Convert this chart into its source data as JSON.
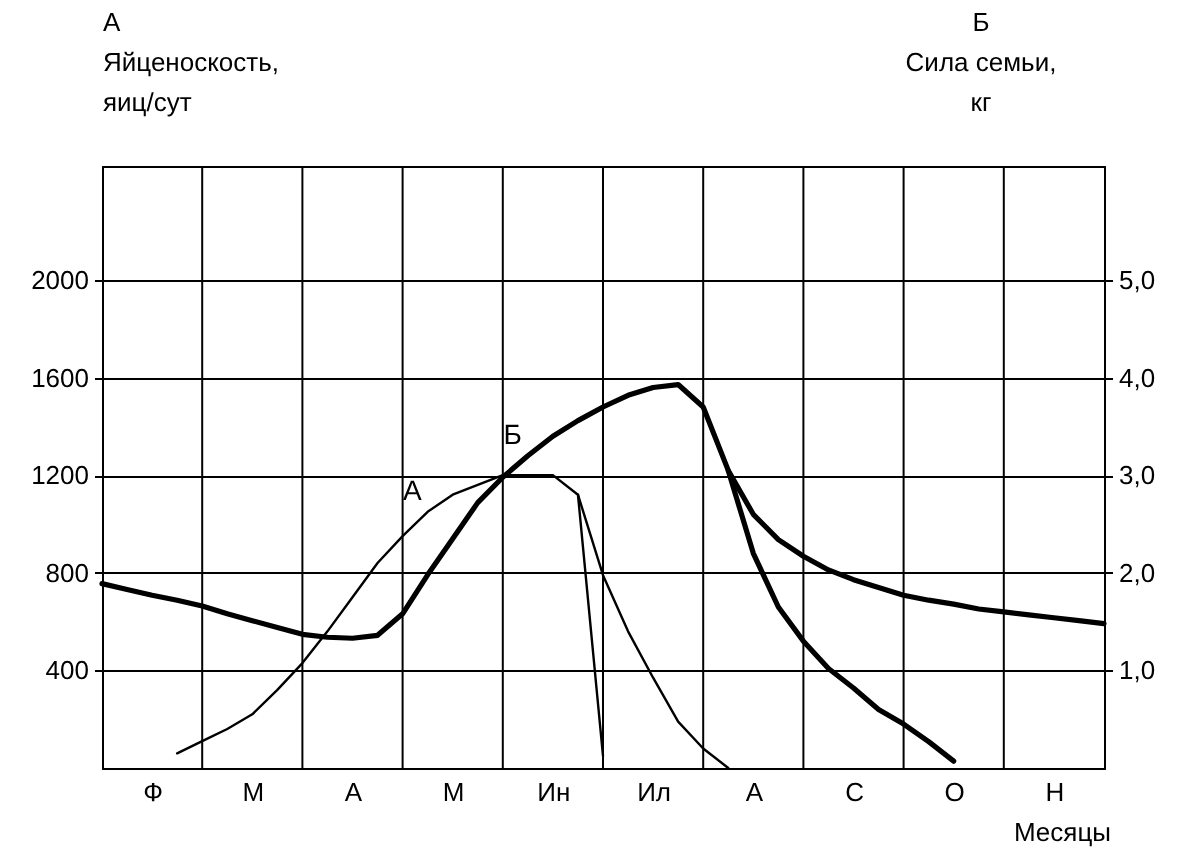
{
  "chart_data": {
    "type": "line",
    "xlabel": "Месяцы",
    "ylabel": "А\nЯйценоскость,\nяиц/сут",
    "y2label": "Б\nСила семьи,\nкг",
    "categories": [
      null,
      null,
      "Ф",
      null,
      null,
      null,
      "М",
      null,
      null,
      null,
      "А",
      null,
      null,
      null,
      "М",
      null,
      null,
      null,
      "Ин",
      null,
      null,
      null,
      "Ил",
      null,
      null,
      null,
      "А",
      null,
      null,
      null,
      "С",
      null,
      null,
      null,
      "О",
      null,
      null,
      null,
      "Н",
      null,
      null
    ],
    "ylim": [
      0,
      2467
    ],
    "yticks": [
      400,
      800,
      1200,
      1600,
      2000
    ],
    "y2lim": [
      0,
      6.17
    ],
    "y2ticks": [
      {
        "value": 1,
        "label": "1,0"
      },
      {
        "value": 2,
        "label": "2,0"
      },
      {
        "value": 3,
        "label": "3,0"
      },
      {
        "value": 4,
        "label": "4,0"
      },
      {
        "value": 5,
        "label": "5,0"
      }
    ],
    "grid": true,
    "series": [
      {
        "name": "А",
        "color": "#000000",
        "values": [
          null,
          null,
          null,
          60,
          110,
          160,
          220,
          320,
          430,
          560,
          700,
          840,
          950,
          1050,
          1120,
          1160,
          1200,
          1200,
          1200,
          1120,
          50,
          null,
          null,
          null,
          null,
          null,
          null,
          null,
          null,
          null,
          null,
          null,
          null,
          null,
          null,
          null,
          null,
          null,
          null,
          null,
          null
        ]
      },
      {
        "color": "#000000",
        "values": [
          null,
          null,
          null,
          null,
          null,
          null,
          null,
          null,
          null,
          null,
          null,
          null,
          null,
          null,
          null,
          null,
          null,
          null,
          null,
          1120,
          790,
          560,
          370,
          190,
          80,
          0,
          null,
          null,
          null,
          null,
          null,
          null,
          null,
          null,
          null,
          null,
          null,
          null,
          null,
          null,
          null
        ]
      },
      {
        "name": "Б",
        "color": "#000000",
        "axis": "y2",
        "values": [
          1.89,
          1.83,
          1.77,
          1.72,
          1.66,
          1.58,
          1.51,
          1.44,
          1.37,
          1.34,
          1.33,
          1.36,
          1.58,
          1.98,
          2.35,
          2.72,
          2.98,
          3.2,
          3.4,
          3.56,
          3.7,
          3.82,
          3.9,
          3.93,
          3.7,
          3.05,
          2.6,
          2.34,
          2.17,
          2.03,
          1.93,
          1.85,
          1.77,
          1.72,
          1.68,
          1.63,
          1.6,
          1.57,
          1.54,
          1.51,
          1.48
        ]
      },
      {
        "color": "#000000",
        "axis": "y2",
        "values": [
          null,
          null,
          null,
          null,
          null,
          null,
          null,
          null,
          null,
          null,
          null,
          null,
          null,
          null,
          null,
          null,
          null,
          null,
          null,
          null,
          null,
          null,
          null,
          null,
          null,
          3.05,
          2.2,
          1.65,
          1.3,
          1.02,
          0.82,
          0.6,
          0.45,
          0.27,
          0.07,
          null,
          null,
          null,
          null,
          null,
          null
        ]
      }
    ]
  }
}
